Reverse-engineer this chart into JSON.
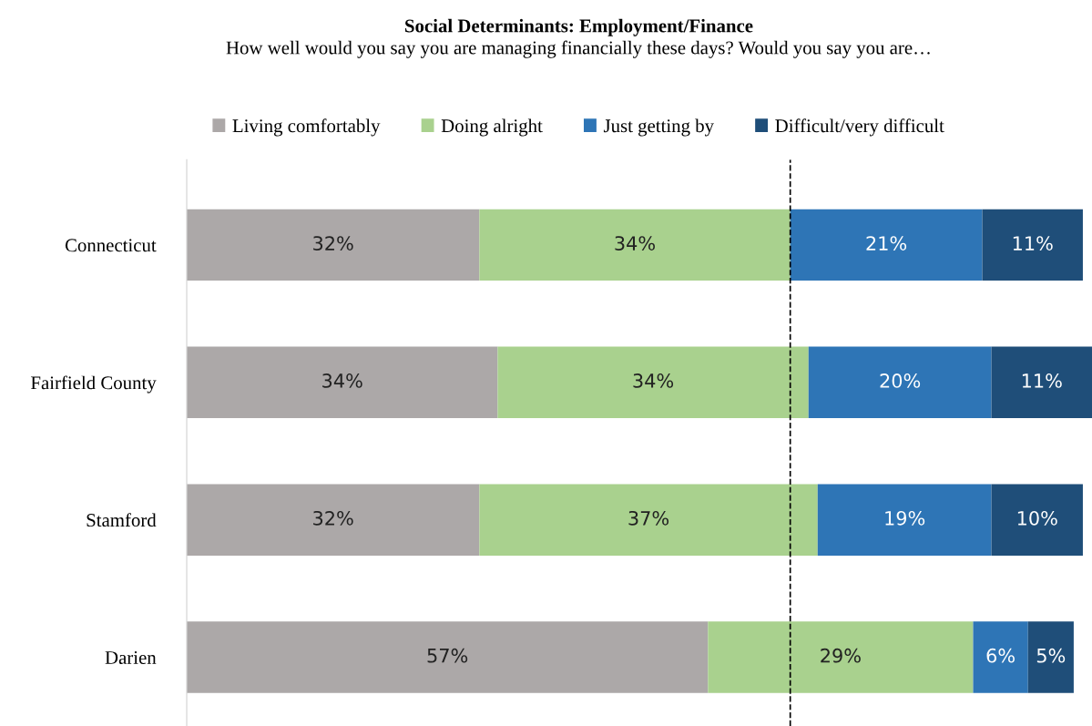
{
  "chart_data": {
    "type": "bar",
    "orientation": "horizontal",
    "stacked": true,
    "title": "Social Determinants: Employment/Finance",
    "subtitle": "How well would you say you are managing financially these days? Would you say you are…",
    "categories": [
      "Connecticut",
      "Fairfield County",
      "Stamford",
      "Darien"
    ],
    "series": [
      {
        "name": "Living comfortably",
        "color": "#aca8a8",
        "values": [
          32,
          34,
          32,
          57
        ],
        "value_labels": [
          "32%",
          "34%",
          "32%",
          "57%"
        ]
      },
      {
        "name": "Doing alright",
        "color": "#a9d18e",
        "values": [
          34,
          34,
          37,
          29
        ],
        "value_labels": [
          "34%",
          "34%",
          "37%",
          "29%"
        ]
      },
      {
        "name": "Just getting by",
        "color": "#2e75b6",
        "values": [
          21,
          20,
          19,
          6
        ],
        "value_labels": [
          "21%",
          "20%",
          "19%",
          "6%"
        ]
      },
      {
        "name": "Difficult/very difficult",
        "color": "#1f4e79",
        "values": [
          11,
          11,
          10,
          5
        ],
        "value_labels": [
          "11%",
          "11%",
          "10%",
          "5%"
        ]
      }
    ],
    "ref_lines": [
      {
        "axis": "x",
        "value": 66,
        "color": "#000000",
        "line_style": "dashed"
      }
    ],
    "legend": "top",
    "grid": false
  }
}
